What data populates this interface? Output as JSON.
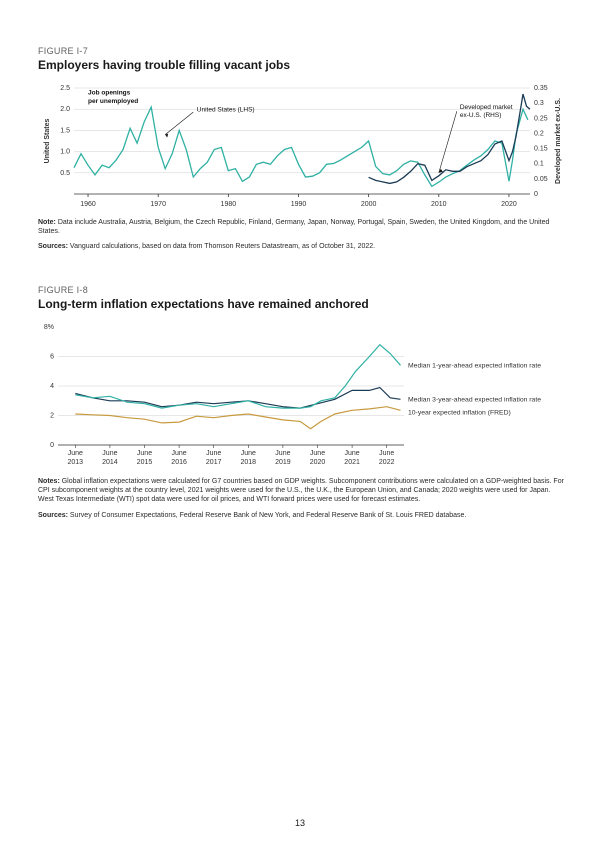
{
  "page_number": "13",
  "fig1": {
    "label": "FIGURE I-7",
    "title": "Employers having trouble filling vacant jobs",
    "left_axis_label": "United States",
    "right_axis_label": "Developed market ex-U.S.",
    "inline_label": "Job openings per unemployed",
    "arrow_us": "United States (LHS)",
    "arrow_dm": "Developed market ex-U.S. (RHS)",
    "note": "Note:",
    "note_text": " Data include Australia, Austria, Belgium, the Czech Republic, Finland, Germany, Japan, Norway, Portugal, Spain, Sweden, the United Kingdom, and the United States.",
    "sources": "Sources:",
    "sources_text": " Vanguard calculations, based on data from Thomson Reuters Datastream, as of October 31, 2022.",
    "x_start": 1958,
    "x_end": 2023,
    "x_ticks": [
      1960,
      1970,
      1980,
      1990,
      2000,
      2010,
      2020
    ],
    "y_left_ticks": [
      0.5,
      1.0,
      1.5,
      2.0,
      2.5
    ],
    "y_right_ticks": [
      0,
      0.05,
      0.1,
      0.15,
      0.2,
      0.25,
      0.3,
      0.35
    ],
    "colors": {
      "us": "#2fb1a3",
      "dm": "#1b3b56",
      "grid": "#cfcfcf",
      "axis": "#333"
    },
    "series_us": [
      [
        1958,
        0.62
      ],
      [
        1959,
        0.95
      ],
      [
        1960,
        0.68
      ],
      [
        1961,
        0.45
      ],
      [
        1962,
        0.68
      ],
      [
        1963,
        0.62
      ],
      [
        1964,
        0.8
      ],
      [
        1965,
        1.05
      ],
      [
        1966,
        1.55
      ],
      [
        1967,
        1.2
      ],
      [
        1968,
        1.7
      ],
      [
        1969,
        2.05
      ],
      [
        1970,
        1.1
      ],
      [
        1971,
        0.6
      ],
      [
        1972,
        0.95
      ],
      [
        1973,
        1.5
      ],
      [
        1974,
        1.05
      ],
      [
        1975,
        0.4
      ],
      [
        1976,
        0.6
      ],
      [
        1977,
        0.75
      ],
      [
        1978,
        1.05
      ],
      [
        1979,
        1.1
      ],
      [
        1980,
        0.55
      ],
      [
        1981,
        0.6
      ],
      [
        1982,
        0.3
      ],
      [
        1983,
        0.4
      ],
      [
        1984,
        0.7
      ],
      [
        1985,
        0.75
      ],
      [
        1986,
        0.7
      ],
      [
        1987,
        0.9
      ],
      [
        1988,
        1.05
      ],
      [
        1989,
        1.1
      ],
      [
        1990,
        0.7
      ],
      [
        1991,
        0.4
      ],
      [
        1992,
        0.42
      ],
      [
        1993,
        0.5
      ],
      [
        1994,
        0.7
      ],
      [
        1995,
        0.72
      ],
      [
        1996,
        0.8
      ],
      [
        1997,
        0.9
      ],
      [
        1998,
        1.0
      ],
      [
        1999,
        1.1
      ],
      [
        2000,
        1.25
      ],
      [
        2001,
        0.65
      ],
      [
        2002,
        0.48
      ],
      [
        2003,
        0.45
      ],
      [
        2004,
        0.55
      ],
      [
        2005,
        0.7
      ],
      [
        2006,
        0.78
      ],
      [
        2007,
        0.75
      ],
      [
        2008,
        0.45
      ],
      [
        2009,
        0.18
      ],
      [
        2010,
        0.28
      ],
      [
        2011,
        0.4
      ],
      [
        2012,
        0.48
      ],
      [
        2013,
        0.55
      ],
      [
        2014,
        0.68
      ],
      [
        2015,
        0.8
      ],
      [
        2016,
        0.9
      ],
      [
        2017,
        1.05
      ],
      [
        2018,
        1.25
      ],
      [
        2019,
        1.2
      ],
      [
        2020,
        0.3
      ],
      [
        2020.5,
        0.8
      ],
      [
        2021,
        1.4
      ],
      [
        2021.5,
        1.7
      ],
      [
        2022,
        2.0
      ],
      [
        2022.7,
        1.75
      ]
    ],
    "series_dm": [
      [
        2000,
        0.055
      ],
      [
        2001,
        0.045
      ],
      [
        2002,
        0.04
      ],
      [
        2003,
        0.035
      ],
      [
        2004,
        0.04
      ],
      [
        2005,
        0.055
      ],
      [
        2006,
        0.075
      ],
      [
        2007,
        0.1
      ],
      [
        2008,
        0.095
      ],
      [
        2009,
        0.045
      ],
      [
        2010,
        0.06
      ],
      [
        2011,
        0.08
      ],
      [
        2012,
        0.075
      ],
      [
        2013,
        0.075
      ],
      [
        2014,
        0.09
      ],
      [
        2015,
        0.1
      ],
      [
        2016,
        0.11
      ],
      [
        2017,
        0.13
      ],
      [
        2018,
        0.165
      ],
      [
        2019,
        0.175
      ],
      [
        2020,
        0.11
      ],
      [
        2020.5,
        0.14
      ],
      [
        2021,
        0.19
      ],
      [
        2021.5,
        0.26
      ],
      [
        2022,
        0.33
      ],
      [
        2022.5,
        0.29
      ],
      [
        2023,
        0.28
      ]
    ]
  },
  "fig2": {
    "label": "FIGURE I-8",
    "title": "Long-term inflation expectations have remained anchored",
    "legend_1yr": "Median 1-year-ahead expected inflation rate",
    "legend_3yr": "Median 3-year-ahead expected inflation rate",
    "legend_10yr": "10-year expected inflation (FRED)",
    "notes": "Notes:",
    "notes_text": " Global inflation expectations were calculated for G7 countries based on GDP weights. Subcomponent contributions were calculated on a GDP-weighted basis. For CPI subcomponent weights at the country level, 2021 weights were used for the U.S., the U.K., the European Union, and Canada; 2020 weights were used for Japan. West Texas Intermediate (WTI) spot data were used for oil prices, and WTI forward prices were used for forecast estimates.",
    "sources": "Sources:",
    "sources_text": " Survey of Consumer Expectations, Federal Reserve Bank of New York, and Federal Reserve Bank of St. Louis FRED database.",
    "x_start": 2013,
    "x_end": 2023,
    "x_tick_labels": [
      [
        "June",
        "2013"
      ],
      [
        "June",
        "2014"
      ],
      [
        "June",
        "2015"
      ],
      [
        "June",
        "2016"
      ],
      [
        "June",
        "2017"
      ],
      [
        "June",
        "2018"
      ],
      [
        "June",
        "2019"
      ],
      [
        "June",
        "2020"
      ],
      [
        "June",
        "2021"
      ],
      [
        "June",
        "2022"
      ]
    ],
    "y_ticks": [
      0,
      2,
      4,
      6
    ],
    "y_top_label": "8%",
    "colors": {
      "s1": "#2fb1a3",
      "s3": "#1b3b56",
      "s10": "#c89a3f",
      "grid": "#cfcfcf"
    },
    "series_1yr": [
      [
        2013.5,
        3.4
      ],
      [
        2014.0,
        3.2
      ],
      [
        2014.5,
        3.3
      ],
      [
        2015.0,
        2.9
      ],
      [
        2015.5,
        2.8
      ],
      [
        2016.0,
        2.5
      ],
      [
        2016.5,
        2.7
      ],
      [
        2017.0,
        2.8
      ],
      [
        2017.5,
        2.6
      ],
      [
        2018.0,
        2.8
      ],
      [
        2018.5,
        3.0
      ],
      [
        2019.0,
        2.6
      ],
      [
        2019.5,
        2.5
      ],
      [
        2020.0,
        2.5
      ],
      [
        2020.3,
        2.6
      ],
      [
        2020.6,
        3.0
      ],
      [
        2021.0,
        3.2
      ],
      [
        2021.3,
        4.0
      ],
      [
        2021.6,
        5.0
      ],
      [
        2022.0,
        6.0
      ],
      [
        2022.3,
        6.8
      ],
      [
        2022.6,
        6.2
      ],
      [
        2022.9,
        5.4
      ]
    ],
    "series_3yr": [
      [
        2013.5,
        3.5
      ],
      [
        2014.0,
        3.2
      ],
      [
        2014.5,
        3.0
      ],
      [
        2015.0,
        3.0
      ],
      [
        2015.5,
        2.9
      ],
      [
        2016.0,
        2.6
      ],
      [
        2016.5,
        2.7
      ],
      [
        2017.0,
        2.9
      ],
      [
        2017.5,
        2.8
      ],
      [
        2018.0,
        2.9
      ],
      [
        2018.5,
        3.0
      ],
      [
        2019.0,
        2.8
      ],
      [
        2019.5,
        2.6
      ],
      [
        2020.0,
        2.5
      ],
      [
        2020.5,
        2.8
      ],
      [
        2021.0,
        3.1
      ],
      [
        2021.5,
        3.7
      ],
      [
        2022.0,
        3.7
      ],
      [
        2022.3,
        3.9
      ],
      [
        2022.6,
        3.2
      ],
      [
        2022.9,
        3.1
      ]
    ],
    "series_10yr": [
      [
        2013.5,
        2.1
      ],
      [
        2014.0,
        2.05
      ],
      [
        2014.5,
        2.0
      ],
      [
        2015.0,
        1.85
      ],
      [
        2015.5,
        1.75
      ],
      [
        2016.0,
        1.5
      ],
      [
        2016.5,
        1.55
      ],
      [
        2017.0,
        1.95
      ],
      [
        2017.5,
        1.85
      ],
      [
        2018.0,
        2.0
      ],
      [
        2018.5,
        2.1
      ],
      [
        2019.0,
        1.9
      ],
      [
        2019.5,
        1.7
      ],
      [
        2020.0,
        1.6
      ],
      [
        2020.3,
        1.1
      ],
      [
        2020.6,
        1.6
      ],
      [
        2021.0,
        2.1
      ],
      [
        2021.5,
        2.35
      ],
      [
        2022.0,
        2.45
      ],
      [
        2022.5,
        2.6
      ],
      [
        2022.9,
        2.35
      ]
    ]
  }
}
